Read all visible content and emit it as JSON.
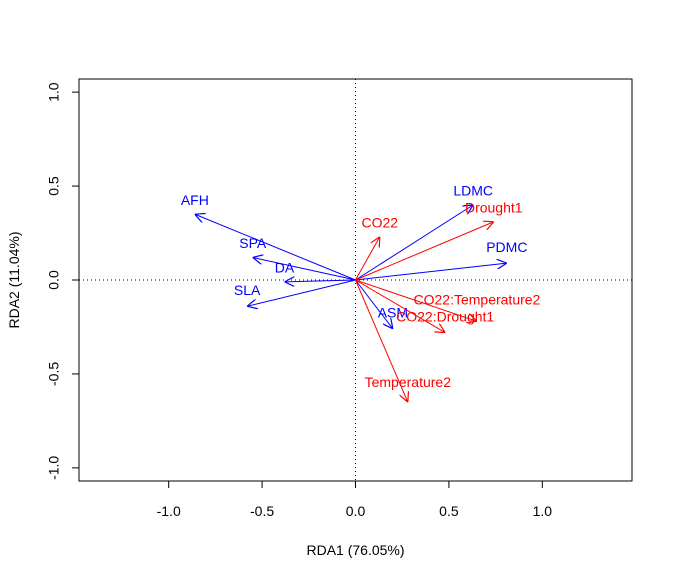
{
  "chart_data": {
    "type": "scatter",
    "title": "",
    "xlabel": "RDA1 (76.05%)",
    "ylabel": "RDA2 (11.04%)",
    "xlim": [
      -1.48,
      1.48
    ],
    "ylim": [
      -1.07,
      1.07
    ],
    "x_ticks": [
      -1.0,
      -0.5,
      0.0,
      0.5,
      1.0
    ],
    "x_tick_labels": [
      "-1.0",
      "-0.5",
      "0.0",
      "0.5",
      "1.0"
    ],
    "y_ticks": [
      -1.0,
      -0.5,
      0.0,
      0.5,
      1.0
    ],
    "y_tick_labels": [
      "-1.0",
      "-0.5",
      "0.0",
      "0.5",
      "1.0"
    ],
    "reference_lines": {
      "x": 0,
      "y": 0,
      "style": "dotted"
    },
    "colors": {
      "traits": "#0000ff",
      "treatments": "#ff0000",
      "axes": "#000000"
    },
    "series": [
      {
        "name": "",
        "color": "#0000ff",
        "arrows": [
          {
            "label": "AFH",
            "x": -0.86,
            "y": 0.35,
            "label_x": -0.86,
            "label_y": 0.42
          },
          {
            "label": "SPA",
            "x": -0.55,
            "y": 0.12,
            "label_x": -0.55,
            "label_y": 0.19
          },
          {
            "label": "DA",
            "x": -0.38,
            "y": -0.01,
            "label_x": -0.38,
            "label_y": 0.06
          },
          {
            "label": "SLA",
            "x": -0.58,
            "y": -0.14,
            "label_x": -0.58,
            "label_y": -0.06
          },
          {
            "label": "LDMC",
            "x": 0.63,
            "y": 0.4,
            "label_x": 0.63,
            "label_y": 0.47
          },
          {
            "label": "PDMC",
            "x": 0.81,
            "y": 0.09,
            "label_x": 0.81,
            "label_y": 0.17
          },
          {
            "label": "ASM",
            "x": 0.2,
            "y": -0.26,
            "label_x": 0.2,
            "label_y": -0.18
          }
        ]
      },
      {
        "name": "",
        "color": "#ff0000",
        "arrows": [
          {
            "label": "CO22",
            "x": 0.13,
            "y": 0.23,
            "label_x": 0.13,
            "label_y": 0.3
          },
          {
            "label": "Drought1",
            "x": 0.74,
            "y": 0.31,
            "label_x": 0.74,
            "label_y": 0.38
          },
          {
            "label": "CO22:Temperature2",
            "x": 0.65,
            "y": -0.22,
            "label_x": 0.65,
            "label_y": -0.11
          },
          {
            "label": "CO22:Drought1",
            "x": 0.48,
            "y": -0.28,
            "label_x": 0.48,
            "label_y": -0.2
          },
          {
            "label": "Temperature2",
            "x": 0.28,
            "y": -0.65,
            "label_x": 0.28,
            "label_y": -0.55
          }
        ]
      }
    ]
  }
}
